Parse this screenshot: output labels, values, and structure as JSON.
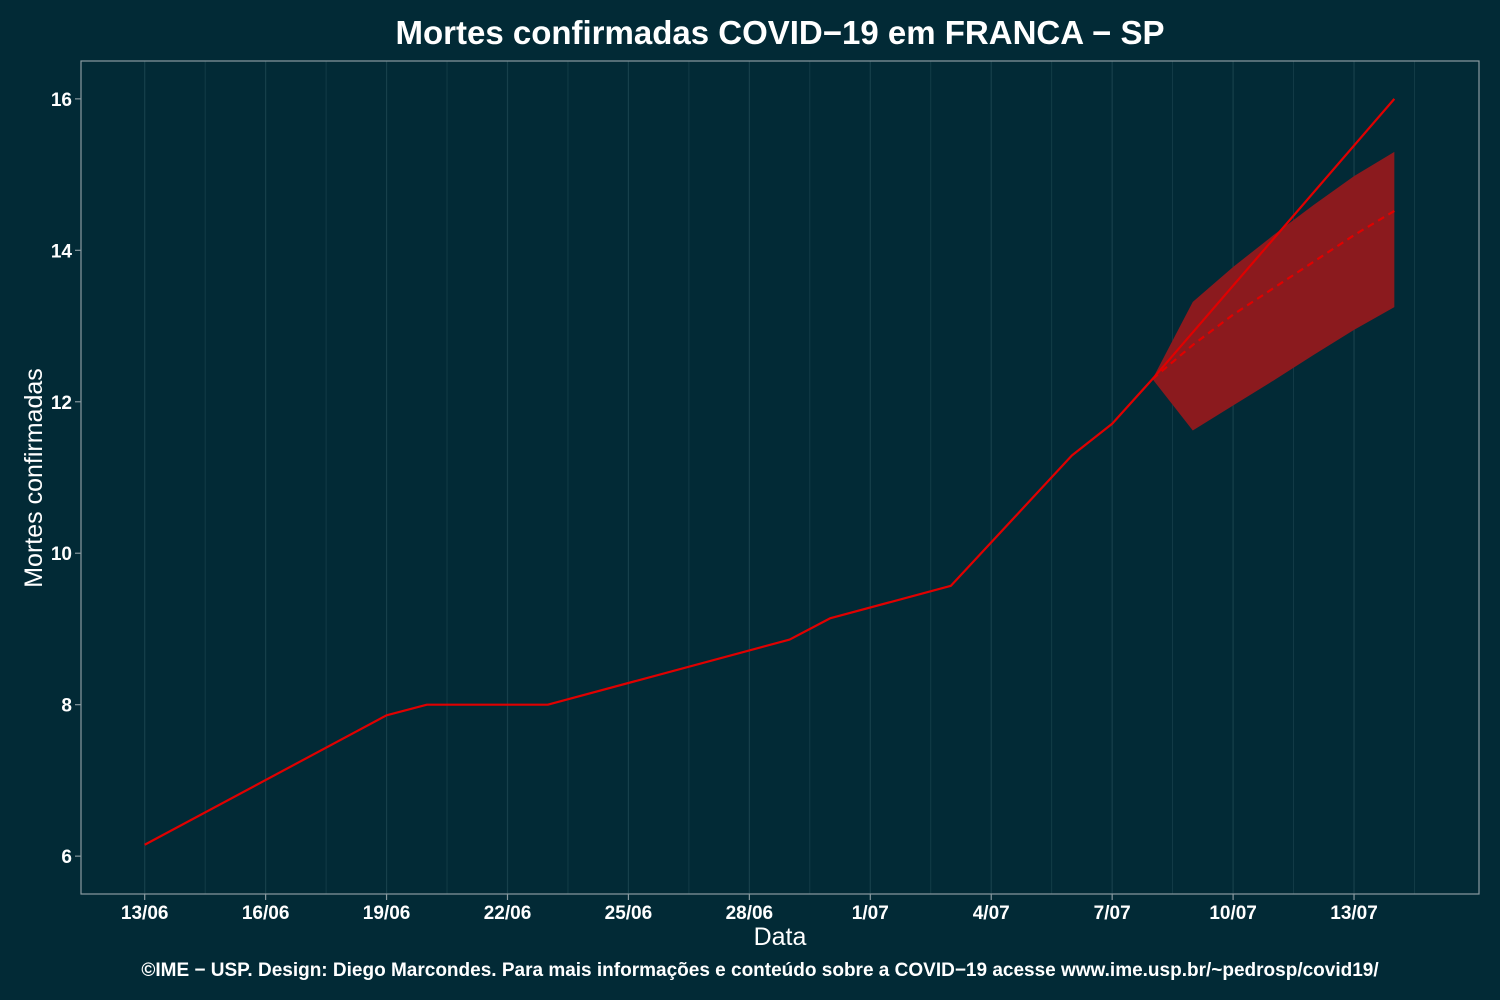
{
  "chart_data": {
    "type": "line",
    "title": "Mortes confirmadas COVID−19 em FRANCA − SP",
    "xlabel": "Data",
    "ylabel": "Mortes confirmadas",
    "caption": "©IME − USP. Design: Diego Marcondes. Para mais informações e conteúdo sobre a COVID−19 acesse www.ime.usp.br/~pedrosp/covid19/",
    "x_tick_labels": [
      "13/06",
      "16/06",
      "19/06",
      "22/06",
      "25/06",
      "28/06",
      "1/07",
      "4/07",
      "7/07",
      "10/07",
      "13/07"
    ],
    "y_ticks": [
      6,
      8,
      10,
      12,
      14,
      16
    ],
    "ylim": [
      5.5,
      16.5
    ],
    "grid": true,
    "colors": {
      "background": "#022a36",
      "grid": "#17404b",
      "line": "#e00000",
      "band": "#8b1a1e",
      "panel_border": "#8a9aa0",
      "text": "#ffffff"
    },
    "series": [
      {
        "style": "solid",
        "x": [
          "2020-06-13",
          "2020-06-19",
          "2020-06-20",
          "2020-06-23",
          "2020-06-29",
          "2020-06-30",
          "2020-07-03",
          "2020-07-06",
          "2020-07-07",
          "2020-07-08",
          "2020-07-14"
        ],
        "y": [
          6.15,
          7.86,
          8.0,
          8.0,
          8.86,
          9.14,
          9.57,
          11.29,
          11.71,
          12.3,
          16.0
        ]
      },
      {
        "style": "dashed",
        "x": [
          "2020-07-08",
          "2020-07-09",
          "2020-07-10",
          "2020-07-11",
          "2020-07-12",
          "2020-07-13",
          "2020-07-14"
        ],
        "y": [
          12.3,
          12.75,
          13.15,
          13.5,
          13.85,
          14.2,
          14.52
        ]
      }
    ],
    "band": {
      "x": [
        "2020-07-08",
        "2020-07-09",
        "2020-07-10",
        "2020-07-11",
        "2020-07-12",
        "2020-07-13",
        "2020-07-14"
      ],
      "lower": [
        12.3,
        11.62,
        11.95,
        12.28,
        12.62,
        12.95,
        13.25
      ],
      "upper": [
        12.3,
        13.32,
        13.78,
        14.2,
        14.6,
        14.98,
        15.3
      ]
    }
  }
}
